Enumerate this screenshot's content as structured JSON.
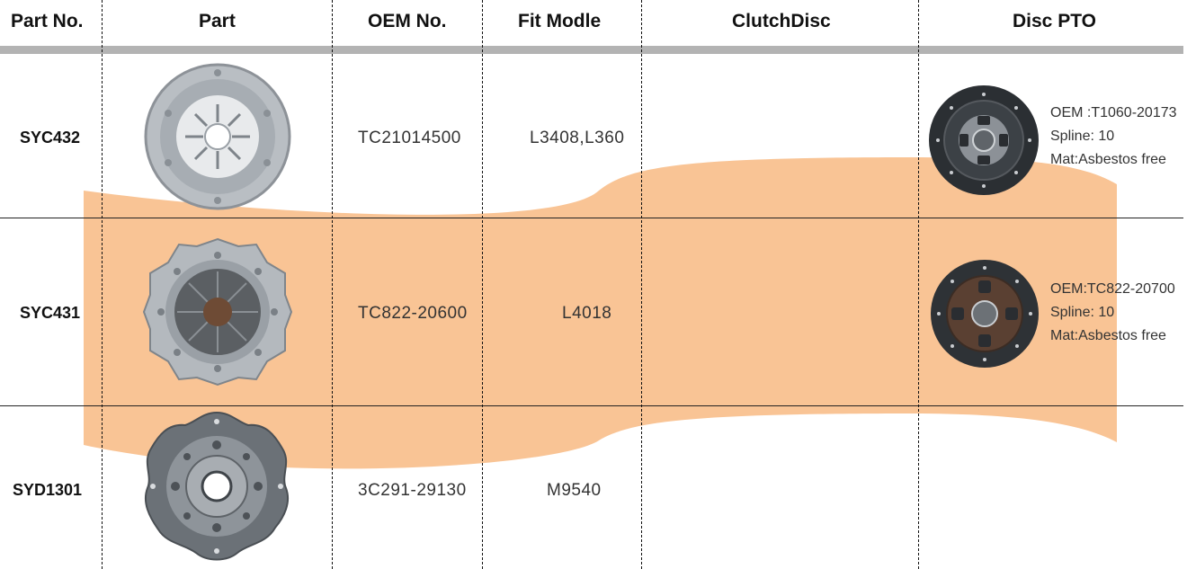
{
  "colors": {
    "banner": "#f9c495",
    "header_bar": "#b3b3b3"
  },
  "headers": {
    "part_no": "Part No.",
    "part": "Part",
    "oem_no": "OEM No.",
    "fit_model": "Fit Modle",
    "clutch_disc": "ClutchDisc",
    "disc_pto": "Disc PTO"
  },
  "rows": [
    {
      "part_no": "SYC432",
      "oem_no": "TC21014500",
      "fit_model": "L3408,L360",
      "part_icon": "clutch-pressure-plate",
      "disc_pto": {
        "icon": "clutch-disc",
        "oem": "OEM :T1060-20173",
        "spline": "Spline: 10",
        "mat": "Mat:Asbestos free"
      }
    },
    {
      "part_no": "SYC431",
      "oem_no": "TC822-20600",
      "fit_model": "L4018",
      "part_icon": "clutch-pressure-plate",
      "disc_pto": {
        "icon": "clutch-disc",
        "oem": "OEM:TC822-20700",
        "spline": "Spline: 10",
        "mat": "Mat:Asbestos free"
      }
    },
    {
      "part_no": "SYD1301",
      "oem_no": "3C291-29130",
      "fit_model": "M9540",
      "part_icon": "clutch-hub-disc"
    }
  ]
}
